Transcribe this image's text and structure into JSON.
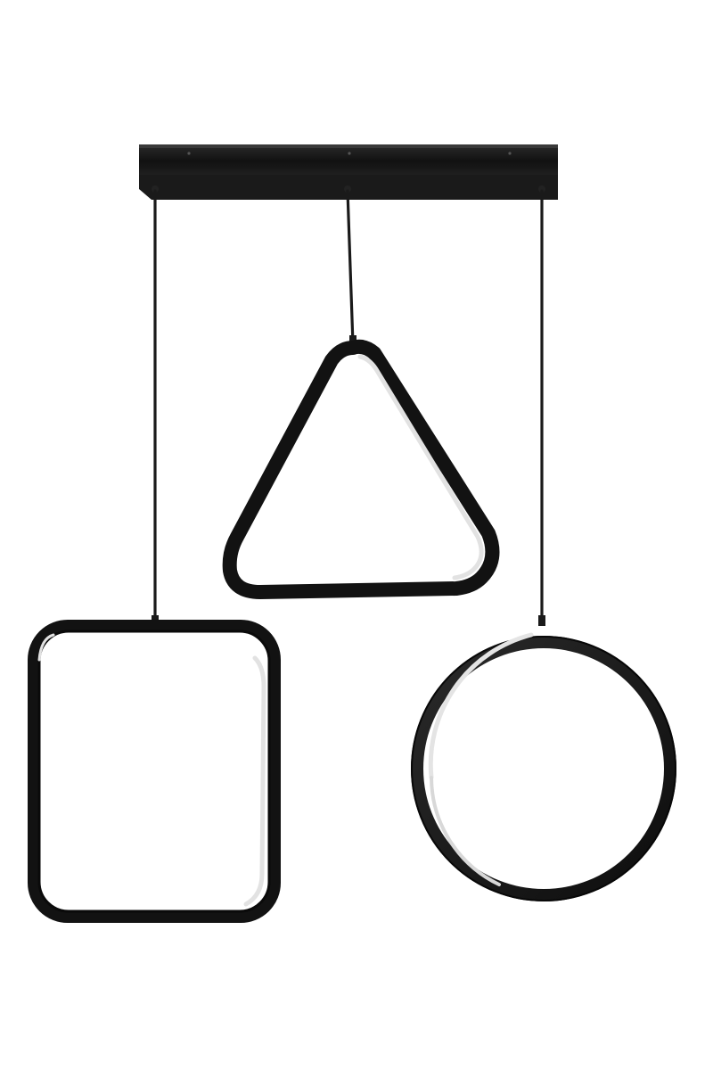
{
  "product": {
    "type": "pendant-light",
    "fixture_count": 3,
    "shapes": [
      "square",
      "triangle",
      "circle"
    ]
  },
  "colors": {
    "background": "#ffffff",
    "frame": "#1c1c1c",
    "frame_edge": "#050505",
    "led_diffuser": "#e6e6e6",
    "canopy": "#141414",
    "canopy_side": "#2a2a2a",
    "cable": "#1a1a1a"
  }
}
